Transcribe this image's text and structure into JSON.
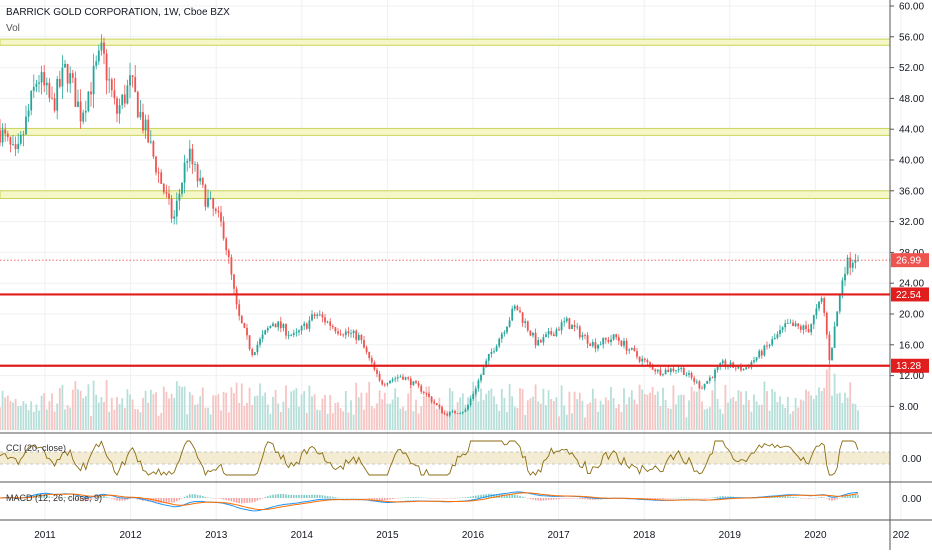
{
  "header": {
    "title": "BARRICK GOLD CORPORATION, 1W, Cboe BZX",
    "volume_label": "Vol"
  },
  "colors": {
    "up": "#26a69a",
    "down": "#ef5350",
    "zone_fill": "#f5f7c7",
    "zone_border": "#c9d45a",
    "support_line": "#e01e1e",
    "cci_line": "#8a6d12",
    "cci_band": "#f3ecd2",
    "macd_line": "#2196f3",
    "signal_line": "#ff6d00"
  },
  "chart_data": [
    {
      "type": "candlestick",
      "title": "BARRICK GOLD CORPORATION, 1W, Cboe BZX",
      "x_ticks": [
        "2011",
        "2012",
        "2013",
        "2014",
        "2015",
        "2016",
        "2017",
        "2018",
        "2019",
        "2020",
        "202"
      ],
      "y_ticks": [
        "60.00",
        "56.00",
        "52.00",
        "48.00",
        "44.00",
        "40.00",
        "36.00",
        "32.00",
        "28.00",
        "24.00",
        "20.00",
        "16.00",
        "12.00",
        "8.00"
      ],
      "price_markers": [
        {
          "label": "26.99",
          "value": 26.99,
          "color": "#ef5350"
        },
        {
          "label": "22.54",
          "value": 22.54,
          "color": "#e01e1e"
        },
        {
          "label": "13.28",
          "value": 13.28,
          "color": "#e01e1e"
        }
      ],
      "horizontal_lines": [
        22.54,
        13.28
      ],
      "resistance_zones": [
        [
          54.9,
          55.7
        ],
        [
          43.2,
          44.1
        ],
        [
          35.0,
          36.0
        ]
      ],
      "price_keypoints": [
        [
          "2010-06",
          45
        ],
        [
          "2010-09",
          40
        ],
        [
          "2010-12",
          51
        ],
        [
          "2011-02",
          47
        ],
        [
          "2011-04",
          52
        ],
        [
          "2011-06",
          46
        ],
        [
          "2011-09",
          54
        ],
        [
          "2011-11",
          46
        ],
        [
          "2012-01",
          50
        ],
        [
          "2012-03",
          44
        ],
        [
          "2012-05",
          38
        ],
        [
          "2012-07",
          32
        ],
        [
          "2012-09",
          41
        ],
        [
          "2012-11",
          36
        ],
        [
          "2013-02",
          31
        ],
        [
          "2013-04",
          20
        ],
        [
          "2013-06",
          15
        ],
        [
          "2013-09",
          19
        ],
        [
          "2013-12",
          17
        ],
        [
          "2014-03",
          20
        ],
        [
          "2014-06",
          18
        ],
        [
          "2014-09",
          17
        ],
        [
          "2014-12",
          11
        ],
        [
          "2015-03",
          12
        ],
        [
          "2015-06",
          10
        ],
        [
          "2015-09",
          7
        ],
        [
          "2015-12",
          7.5
        ],
        [
          "2016-03",
          14
        ],
        [
          "2016-07",
          21
        ],
        [
          "2016-10",
          16
        ],
        [
          "2017-02",
          19
        ],
        [
          "2017-06",
          16
        ],
        [
          "2017-09",
          17
        ],
        [
          "2017-12",
          14.5
        ],
        [
          "2018-03",
          12.5
        ],
        [
          "2018-06",
          13
        ],
        [
          "2018-09",
          10.5
        ],
        [
          "2018-12",
          13.5
        ],
        [
          "2019-03",
          12.8
        ],
        [
          "2019-06",
          15.5
        ],
        [
          "2019-09",
          18.5
        ],
        [
          "2019-12",
          18
        ],
        [
          "2020-02",
          22
        ],
        [
          "2020-03",
          14
        ],
        [
          "2020-05",
          26
        ],
        [
          "2020-07",
          28
        ],
        [
          "2020-08",
          29.5
        ],
        [
          "2020-09",
          27
        ]
      ]
    },
    {
      "type": "line",
      "title": "CCI (20, close)",
      "y_ticks": [
        "0.00"
      ],
      "series": [
        {
          "name": "CCI (20, close)"
        }
      ]
    },
    {
      "type": "line",
      "title": "MACD (12, 26, close, 9)",
      "y_ticks": [
        "0.00"
      ],
      "series": [
        {
          "name": "MACD"
        },
        {
          "name": "Signal"
        }
      ]
    }
  ]
}
